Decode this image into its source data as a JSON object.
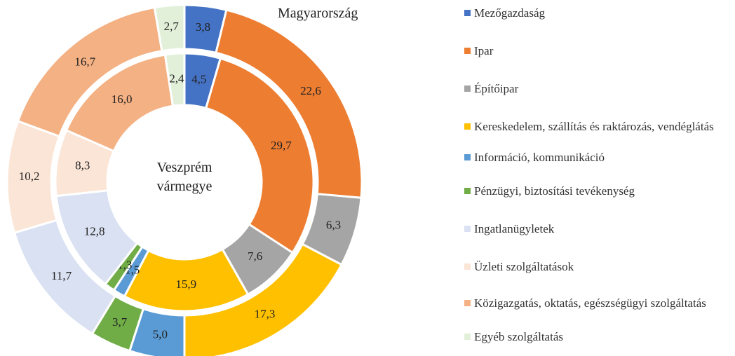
{
  "chart_data": {
    "type": "donut",
    "categories": [
      "Mezőgazdaság",
      "Ipar",
      "Építőipar",
      "Kereskedelem, szállítás és raktározás, vendéglátás",
      "Információ, kommunikáció",
      "Pénzügyi, biztosítási tevékenység",
      "Ingatlanügyletek",
      "Üzleti szolgáltatások",
      "Közigazgatás, oktatás, egészségügyi szolgáltatás",
      "Egyéb szolgáltatás"
    ],
    "colors": [
      "#4472c4",
      "#ed7d31",
      "#a5a5a5",
      "#ffc000",
      "#5b9bd5",
      "#70ad47",
      "#d9e1f2",
      "#fbe5d6",
      "#f4b183",
      "#e2f0d9"
    ],
    "series": [
      {
        "name": "Magyarország",
        "values": [
          3.8,
          22.6,
          6.3,
          17.3,
          5.0,
          3.7,
          11.7,
          10.2,
          16.7,
          2.7
        ],
        "value_labels": [
          "3,8",
          "22,6",
          "6,3",
          "17,3",
          "5,0",
          "3,7",
          "11,7",
          "10,2",
          "16,7",
          "2,7"
        ]
      },
      {
        "name": "Veszprém vármegye",
        "values": [
          4.5,
          29.7,
          7.6,
          15.9,
          1.5,
          1.3,
          12.8,
          8.3,
          16.0,
          2.4
        ],
        "value_labels": [
          "4,5",
          "29,7",
          "7,6",
          "15,9",
          "1,5",
          "1,3",
          "12,8",
          "8,3",
          "16,0",
          "2,4"
        ]
      }
    ],
    "legend": "right"
  }
}
